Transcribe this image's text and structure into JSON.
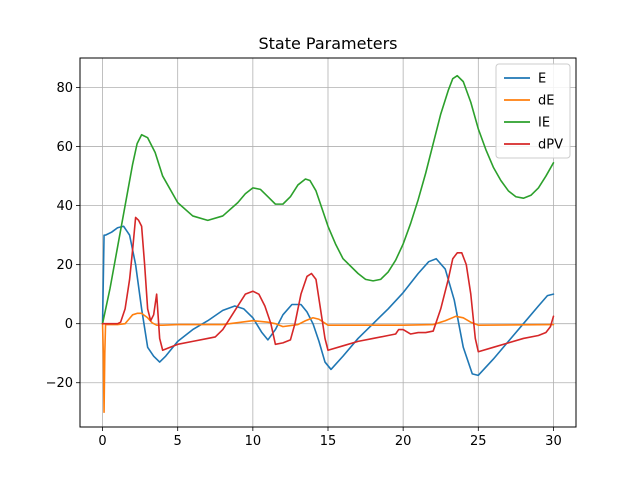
{
  "chart_data": {
    "type": "line",
    "title": "State Parameters",
    "xlabel": "",
    "ylabel": "",
    "xlim": [
      -1.5,
      31.5
    ],
    "ylim": [
      -35,
      90
    ],
    "grid": true,
    "legend_position": "top-right",
    "xticks": [
      0,
      5,
      10,
      15,
      20,
      25,
      30
    ],
    "yticks": [
      -20,
      0,
      20,
      40,
      60,
      80
    ],
    "xtick_labels": [
      "0",
      "5",
      "10",
      "15",
      "20",
      "25",
      "30"
    ],
    "ytick_labels": [
      "−20",
      "0",
      "20",
      "40",
      "60",
      "80"
    ],
    "series": [
      {
        "name": "E",
        "color": "#1f77b4",
        "x": [
          0,
          0.1,
          0.2,
          0.6,
          1.0,
          1.4,
          1.8,
          2.2,
          2.6,
          3.0,
          3.4,
          3.8,
          4.2,
          5.0,
          6.0,
          7.0,
          8.0,
          8.8,
          9.4,
          10.0,
          10.6,
          11.0,
          11.5,
          12.0,
          12.6,
          13.2,
          13.6,
          14.0,
          14.4,
          14.8,
          15.2,
          16.0,
          17.0,
          18.0,
          19.0,
          20.0,
          21.0,
          21.7,
          22.2,
          22.8,
          23.4,
          24.0,
          24.6,
          25.0,
          26.0,
          27.0,
          28.0,
          29.0,
          29.6,
          30.0
        ],
        "y": [
          0,
          30,
          30,
          31,
          32.5,
          33,
          30,
          20,
          5,
          -8,
          -11,
          -13,
          -11,
          -6,
          -2,
          1,
          4.5,
          6,
          5,
          2,
          -3,
          -5.5,
          -2,
          3,
          6.5,
          6.5,
          4,
          0,
          -6,
          -13,
          -15.5,
          -11,
          -5,
          0,
          5,
          10.5,
          17,
          21,
          22,
          18.5,
          8,
          -8,
          -17,
          -17.5,
          -12,
          -6,
          0,
          6,
          9.5,
          10
        ]
      },
      {
        "name": "dE",
        "color": "#ff7f0e",
        "x": [
          0,
          0.05,
          0.1,
          0.15,
          0.2,
          0.3,
          1.0,
          1.5,
          2.0,
          2.3,
          2.6,
          3.0,
          3.3,
          3.6,
          4.0,
          5.0,
          8.0,
          10.0,
          11.0,
          11.5,
          12.0,
          13.0,
          13.5,
          14.0,
          14.4,
          15.0,
          20.0,
          22.0,
          22.8,
          23.5,
          24.0,
          24.5,
          25.0,
          30.0
        ],
        "y": [
          0,
          -10,
          -30,
          -10,
          -0.3,
          -0.3,
          -0.3,
          0,
          3,
          3.5,
          3.5,
          2,
          0.3,
          -0.5,
          -0.5,
          -0.3,
          -0.3,
          1,
          0.5,
          0,
          -1,
          -0.3,
          1,
          2,
          1.5,
          -0.5,
          -0.5,
          -0.3,
          1,
          2.5,
          2,
          0.5,
          -0.5,
          -0.3
        ]
      },
      {
        "name": "IE",
        "color": "#2ca02c",
        "x": [
          0,
          0.5,
          1.0,
          1.5,
          2.0,
          2.3,
          2.6,
          3.0,
          3.5,
          4.0,
          5.0,
          6.0,
          7.0,
          8.0,
          9.0,
          9.5,
          10.0,
          10.5,
          11.0,
          11.5,
          12.0,
          12.5,
          13.0,
          13.5,
          13.8,
          14.2,
          14.6,
          15.0,
          15.5,
          16.0,
          17.0,
          17.5,
          18.0,
          18.5,
          19.0,
          19.5,
          20.0,
          20.5,
          21.0,
          21.5,
          22.0,
          22.5,
          23.0,
          23.3,
          23.6,
          24.0,
          24.5,
          25.0,
          25.5,
          26.0,
          26.5,
          27.0,
          27.5,
          28.0,
          28.5,
          29.0,
          29.5,
          30.0
        ],
        "y": [
          0,
          12,
          26,
          40,
          54,
          61,
          64,
          63,
          58,
          50,
          41,
          36.5,
          35,
          36.5,
          41,
          44,
          46,
          45.5,
          43,
          40.5,
          40.5,
          43,
          47,
          49,
          48.5,
          45,
          39,
          33,
          27,
          22,
          17,
          15,
          14.5,
          15,
          17.5,
          21.5,
          27,
          34,
          42,
          51,
          61,
          71,
          79,
          83,
          84,
          82,
          75,
          66,
          59,
          53,
          48.5,
          45,
          43,
          42.5,
          43.5,
          46,
          50,
          54.5
        ]
      },
      {
        "name": "dPV",
        "color": "#d62728",
        "x": [
          0,
          0.5,
          1.0,
          1.2,
          1.5,
          1.8,
          2.0,
          2.2,
          2.4,
          2.6,
          2.8,
          3.0,
          3.2,
          3.4,
          3.6,
          3.8,
          4.0,
          4.5,
          5.0,
          6.0,
          7.0,
          7.5,
          8.0,
          8.5,
          9.0,
          9.5,
          10.0,
          10.4,
          10.8,
          11.2,
          11.5,
          12.0,
          12.5,
          12.8,
          13.2,
          13.6,
          13.9,
          14.2,
          14.5,
          14.8,
          15.0,
          16.0,
          17.0,
          18.0,
          19.0,
          19.5,
          19.7,
          20.0,
          20.5,
          21.0,
          21.5,
          22.0,
          22.5,
          23.0,
          23.3,
          23.6,
          23.9,
          24.2,
          24.5,
          24.8,
          25.0,
          26.0,
          27.0,
          28.0,
          29.0,
          29.5,
          29.8,
          30.0
        ],
        "y": [
          0,
          0,
          0,
          0.5,
          5,
          15,
          25,
          36,
          35,
          33,
          20,
          5,
          1,
          3,
          10,
          -5,
          -9,
          -8,
          -7,
          -6,
          -5,
          -4.5,
          -2,
          2,
          6,
          10,
          11,
          10,
          6,
          0,
          -7,
          -6.5,
          -5.5,
          0,
          10,
          16,
          17,
          15,
          5,
          -5,
          -9,
          -7.5,
          -6,
          -5,
          -4,
          -3.5,
          -2,
          -2,
          -3.5,
          -3,
          -3,
          -2.5,
          5,
          15,
          22,
          24,
          24,
          20,
          10,
          -5,
          -9.5,
          -8,
          -6.5,
          -5,
          -4,
          -3,
          -1,
          2.5
        ]
      }
    ]
  }
}
